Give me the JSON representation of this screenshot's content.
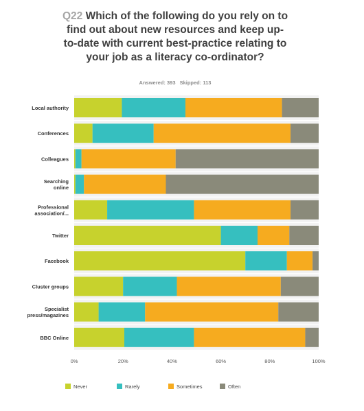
{
  "survey": {
    "question_number": "Q22",
    "question_text": "Which of the following do you rely on to find out about new resources and keep up-to-date with current best-practice relating to your job as a literacy co-ordinator?",
    "answered_label": "Answered: 393",
    "skipped_label": "Skipped: 113"
  },
  "chart_data": {
    "type": "bar",
    "orientation": "horizontal",
    "stacked": true,
    "categories": [
      [
        "Local authority"
      ],
      [
        "Conferences"
      ],
      [
        "Colleagues"
      ],
      [
        "Searching",
        "online"
      ],
      [
        "Professional",
        "association/..."
      ],
      [
        "Twitter"
      ],
      [
        "Facebook"
      ],
      [
        "Cluster groups"
      ],
      [
        "Specialist",
        "press/magazines"
      ],
      [
        "BBC Online"
      ]
    ],
    "series": [
      {
        "name": "Never",
        "color": "#c7d22d",
        "values": [
          19.5,
          7.5,
          0.5,
          0.5,
          13.5,
          60,
          70,
          20,
          10,
          20.5
        ]
      },
      {
        "name": "Rarely",
        "color": "#36bfbf",
        "values": [
          26,
          25,
          2.5,
          3.5,
          35.5,
          15,
          17,
          22,
          19,
          28.5
        ]
      },
      {
        "name": "Sometimes",
        "color": "#f6ab1f",
        "values": [
          39.5,
          56,
          38.5,
          33.5,
          39.5,
          13,
          10.5,
          42.5,
          54.5,
          45.5
        ]
      },
      {
        "name": "Often",
        "color": "#8a8a7a",
        "values": [
          15,
          11.5,
          58.5,
          62.5,
          11.5,
          12,
          2.5,
          15.5,
          16.5,
          5.5
        ]
      }
    ],
    "x_ticks": [
      "0%",
      "20%",
      "40%",
      "60%",
      "80%",
      "100%"
    ],
    "xlim": [
      0,
      100
    ],
    "legend_position": "bottom",
    "grid": false
  }
}
